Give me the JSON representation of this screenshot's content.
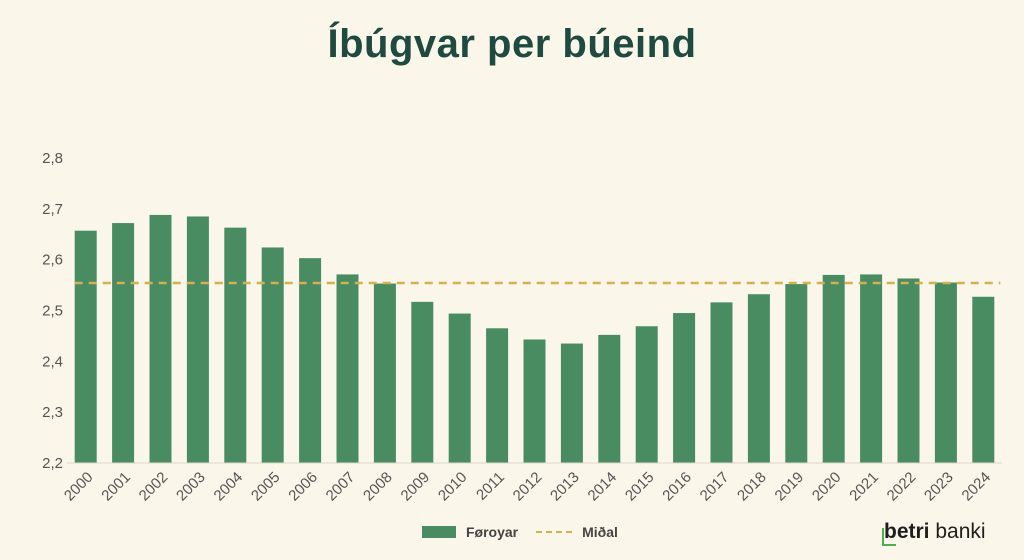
{
  "title": "Íbúgvar per búeind",
  "colors": {
    "bar": "#4a8c62",
    "mean": "#d4b04e",
    "title": "#1f4a3f"
  },
  "legend": {
    "bar_label": "Føroyar",
    "line_label": "Miðal"
  },
  "brand": {
    "bold": "betri",
    "rest": " banki"
  },
  "chart_data": {
    "type": "bar",
    "title": "Íbúgvar per búeind",
    "categories": [
      "2000",
      "2001",
      "2002",
      "2003",
      "2004",
      "2005",
      "2006",
      "2007",
      "2008",
      "2009",
      "2010",
      "2011",
      "2012",
      "2013",
      "2014",
      "2015",
      "2016",
      "2017",
      "2018",
      "2019",
      "2020",
      "2021",
      "2022",
      "2023",
      "2024"
    ],
    "series": [
      {
        "name": "Føroyar",
        "values": [
          2.657,
          2.672,
          2.688,
          2.685,
          2.663,
          2.624,
          2.603,
          2.571,
          2.553,
          2.517,
          2.494,
          2.465,
          2.443,
          2.435,
          2.452,
          2.469,
          2.495,
          2.516,
          2.532,
          2.552,
          2.57,
          2.571,
          2.563,
          2.555,
          2.527
        ]
      },
      {
        "name": "Miðal",
        "type": "line",
        "style": "dashed",
        "value": 2.554
      }
    ],
    "ylim": [
      2.2,
      2.8
    ],
    "yticks": [
      "2,2",
      "2,3",
      "2,4",
      "2,5",
      "2,6",
      "2,7",
      "2,8"
    ],
    "grid": false,
    "legend_position": "bottom-center"
  }
}
